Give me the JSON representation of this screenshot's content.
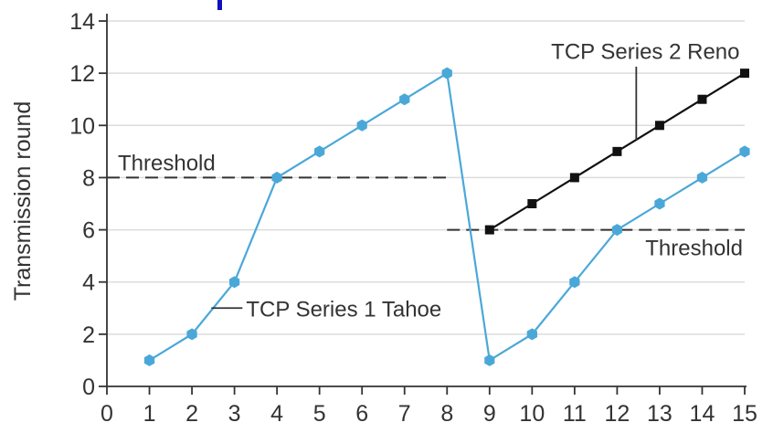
{
  "chart_data": {
    "type": "line",
    "xlabel": "",
    "ylabel": "Transmission round",
    "xlim": [
      0,
      15
    ],
    "ylim": [
      0,
      14
    ],
    "x_ticks": [
      0,
      1,
      2,
      3,
      4,
      5,
      6,
      7,
      8,
      9,
      10,
      11,
      12,
      13,
      14,
      15
    ],
    "y_ticks": [
      0,
      2,
      4,
      6,
      8,
      10,
      12,
      14
    ],
    "grid": true,
    "series": [
      {
        "name": "TCP Series 1 Tahoe",
        "color": "#4aa8d8",
        "marker": "hexagon",
        "x": [
          1,
          2,
          3,
          4,
          5,
          6,
          7,
          8,
          9,
          10,
          11,
          12,
          13,
          14,
          15
        ],
        "y": [
          1,
          2,
          4,
          8,
          9,
          10,
          11,
          12,
          1,
          2,
          4,
          6,
          7,
          8,
          9
        ]
      },
      {
        "name": "TCP Series 2 Reno",
        "color": "#111111",
        "marker": "square",
        "x": [
          9,
          10,
          11,
          12,
          13,
          14,
          15
        ],
        "y": [
          6,
          7,
          8,
          9,
          10,
          11,
          12
        ]
      }
    ],
    "thresholds": [
      {
        "label": "Threshold",
        "y": 8,
        "x_range": [
          0,
          8
        ]
      },
      {
        "label": "Threshold",
        "y": 6,
        "x_range": [
          8,
          15
        ]
      }
    ],
    "annotations": [
      {
        "text": "TCP Series 1 Tahoe",
        "series": 0
      },
      {
        "text": "TCP Series 2 Reno",
        "series": 1
      }
    ],
    "accent_color": "#1010c0"
  }
}
